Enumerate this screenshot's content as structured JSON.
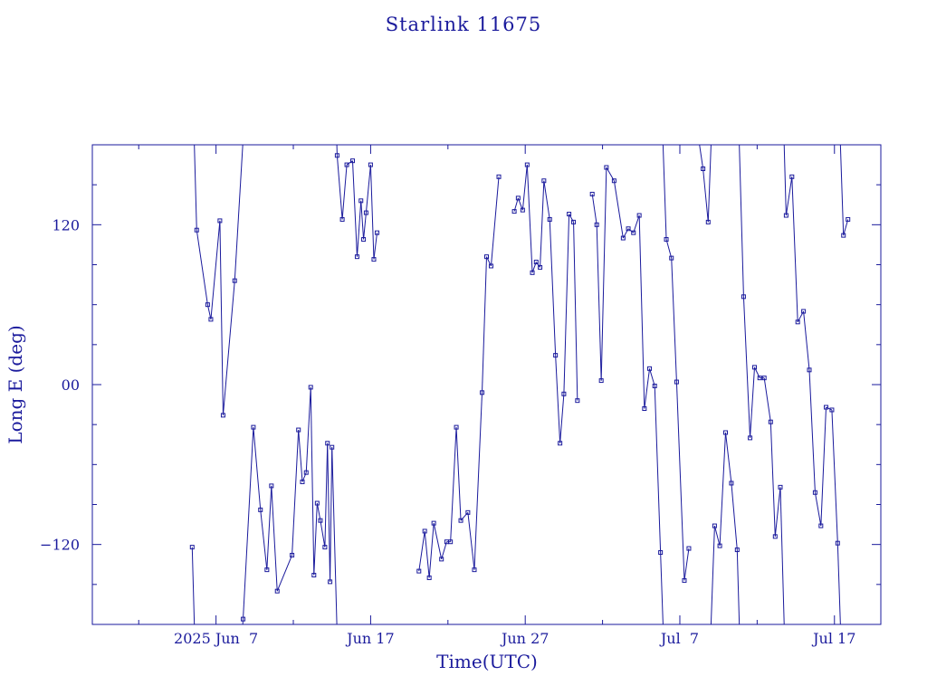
{
  "chart_data": {
    "type": "line",
    "title": "Starlink 11675",
    "xlabel": "Time(UTC)",
    "ylabel": "Long E (deg)",
    "xlim": [
      "2025-05-30",
      "2025-07-20"
    ],
    "ylim": [
      -180,
      180
    ],
    "x_ticks": [
      {
        "date": "2025-06-07",
        "label": "2025 Jun  7"
      },
      {
        "date": "2025-06-17",
        "label": "Jun 17"
      },
      {
        "date": "2025-06-27",
        "label": "Jun 27"
      },
      {
        "date": "2025-07-07",
        "label": "Jul  7"
      },
      {
        "date": "2025-07-17",
        "label": "Jul 17"
      }
    ],
    "y_ticks": [
      {
        "value": 120,
        "label": "120"
      },
      {
        "value": 0,
        "label": "00"
      },
      {
        "value": -120,
        "label": "−120"
      }
    ],
    "grid": false,
    "marker": "square",
    "color": "#1a1a9c",
    "series": [
      {
        "points": [
          [
            "2025-06-05 11:00",
            -122
          ],
          [
            "2025-06-05 18:00",
            116
          ],
          [
            "2025-06-06 11:00",
            60
          ],
          [
            "2025-06-06 16:00",
            49
          ],
          [
            "2025-06-07 06:00",
            123
          ],
          [
            "2025-06-07 11:00",
            -23
          ],
          [
            "2025-06-08 05:00",
            78
          ],
          [
            "2025-06-08 18:00",
            -176
          ],
          [
            "2025-06-09 10:00",
            -32
          ],
          [
            "2025-06-09 21:00",
            -94
          ],
          [
            "2025-06-10 07:00",
            -139
          ],
          [
            "2025-06-10 14:00",
            -76
          ],
          [
            "2025-06-10 23:00",
            -155
          ],
          [
            "2025-06-11 22:00",
            -128
          ],
          [
            "2025-06-12 08:00",
            -34
          ],
          [
            "2025-06-12 14:00",
            -73
          ],
          [
            "2025-06-12 20:00",
            -66
          ],
          [
            "2025-06-13 03:00",
            -2
          ],
          [
            "2025-06-13 08:00",
            -143
          ],
          [
            "2025-06-13 13:00",
            -89
          ],
          [
            "2025-06-13 18:00",
            -102
          ],
          [
            "2025-06-14 01:00",
            -122
          ],
          [
            "2025-06-14 05:00",
            -44
          ],
          [
            "2025-06-14 09:00",
            -148
          ],
          [
            "2025-06-14 12:00",
            -47
          ],
          [
            "2025-06-14 20:00",
            172
          ],
          [
            "2025-06-15 04:00",
            124
          ],
          [
            "2025-06-15 11:00",
            165
          ],
          [
            "2025-06-15 20:00",
            168
          ],
          [
            "2025-06-16 03:00",
            96
          ],
          [
            "2025-06-16 09:00",
            138
          ],
          [
            "2025-06-16 13:00",
            109
          ],
          [
            "2025-06-16 17:00",
            129
          ],
          [
            "2025-06-17 00:00",
            165
          ],
          [
            "2025-06-17 05:00",
            94
          ],
          [
            "2025-06-17 10:00",
            114
          ]
        ]
      },
      {
        "points": [
          [
            "2025-06-20 03:00",
            -140
          ],
          [
            "2025-06-20 12:00",
            -110
          ],
          [
            "2025-06-20 19:00",
            -145
          ],
          [
            "2025-06-21 02:00",
            -104
          ],
          [
            "2025-06-21 14:00",
            -131
          ],
          [
            "2025-06-21 22:00",
            -118
          ],
          [
            "2025-06-22 04:00",
            -118
          ],
          [
            "2025-06-22 13:00",
            -32
          ],
          [
            "2025-06-22 20:00",
            -102
          ],
          [
            "2025-06-23 07:00",
            -96
          ],
          [
            "2025-06-23 17:00",
            -139
          ],
          [
            "2025-06-24 05:00",
            -6
          ],
          [
            "2025-06-24 12:00",
            96
          ],
          [
            "2025-06-24 19:00",
            89
          ],
          [
            "2025-06-25 07:00",
            156
          ]
        ]
      },
      {
        "points": [
          [
            "2025-06-26 07:00",
            130
          ],
          [
            "2025-06-26 13:00",
            140
          ],
          [
            "2025-06-26 20:00",
            131
          ],
          [
            "2025-06-27 03:00",
            165
          ],
          [
            "2025-06-27 11:00",
            84
          ],
          [
            "2025-06-27 17:00",
            92
          ],
          [
            "2025-06-27 23:00",
            88
          ],
          [
            "2025-06-28 05:00",
            153
          ],
          [
            "2025-06-28 14:00",
            124
          ],
          [
            "2025-06-28 23:00",
            22
          ],
          [
            "2025-06-29 06:00",
            -44
          ],
          [
            "2025-06-29 12:00",
            -7
          ],
          [
            "2025-06-29 20:00",
            128
          ],
          [
            "2025-06-30 03:00",
            122
          ],
          [
            "2025-06-30 09:00",
            -12
          ]
        ]
      },
      {
        "points": [
          [
            "2025-07-01 08:00",
            143
          ],
          [
            "2025-07-01 15:00",
            120
          ],
          [
            "2025-07-01 22:00",
            3
          ],
          [
            "2025-07-02 06:00",
            163
          ],
          [
            "2025-07-02 18:00",
            153
          ],
          [
            "2025-07-03 08:00",
            110
          ],
          [
            "2025-07-03 16:00",
            117
          ],
          [
            "2025-07-04 00:00",
            114
          ],
          [
            "2025-07-04 09:00",
            127
          ],
          [
            "2025-07-04 17:00",
            -18
          ],
          [
            "2025-07-05 01:00",
            12
          ],
          [
            "2025-07-05 09:00",
            -1
          ],
          [
            "2025-07-05 18:00",
            -126
          ],
          [
            "2025-07-06 03:00",
            109
          ],
          [
            "2025-07-06 11:00",
            95
          ],
          [
            "2025-07-06 19:00",
            2
          ],
          [
            "2025-07-07 07:00",
            -147
          ],
          [
            "2025-07-07 14:00",
            -123
          ]
        ]
      },
      {
        "points": [
          [
            "2025-07-08 05:00",
            185
          ],
          [
            "2025-07-08 12:00",
            162
          ],
          [
            "2025-07-08 20:00",
            122
          ],
          [
            "2025-07-09 06:00",
            -106
          ],
          [
            "2025-07-09 14:00",
            -121
          ],
          [
            "2025-07-09 23:00",
            -36
          ],
          [
            "2025-07-10 08:00",
            -74
          ],
          [
            "2025-07-10 17:00",
            -124
          ],
          [
            "2025-07-11 03:00",
            66
          ],
          [
            "2025-07-11 13:00",
            -40
          ],
          [
            "2025-07-11 20:00",
            13
          ],
          [
            "2025-07-12 04:00",
            5
          ],
          [
            "2025-07-12 11:00",
            5
          ],
          [
            "2025-07-12 21:00",
            -28
          ],
          [
            "2025-07-13 04:00",
            -114
          ],
          [
            "2025-07-13 12:00",
            -77
          ],
          [
            "2025-07-13 21:00",
            127
          ],
          [
            "2025-07-14 06:00",
            156
          ],
          [
            "2025-07-14 15:00",
            47
          ],
          [
            "2025-07-15 00:00",
            55
          ],
          [
            "2025-07-15 09:00",
            11
          ],
          [
            "2025-07-15 18:00",
            -81
          ],
          [
            "2025-07-16 03:00",
            -106
          ],
          [
            "2025-07-16 11:00",
            -17
          ],
          [
            "2025-07-16 20:00",
            -19
          ],
          [
            "2025-07-17 05:00",
            -119
          ],
          [
            "2025-07-17 14:00",
            112
          ],
          [
            "2025-07-17 21:00",
            124
          ]
        ]
      }
    ]
  }
}
